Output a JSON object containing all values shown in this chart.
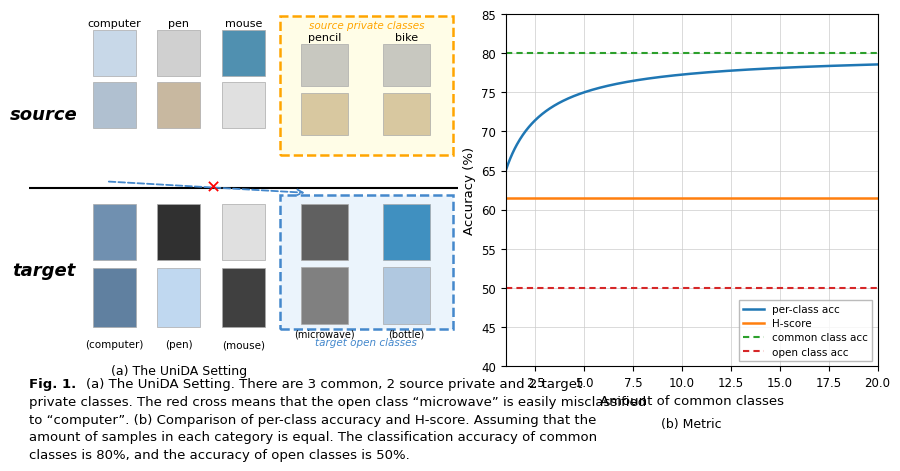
{
  "subplot_a_label": "(a) The UniDA Setting",
  "subplot_b_label": "(b) Metric",
  "fig_caption_bold": "Fig. 1.",
  "fig_caption_text": "(a) The UniDA Setting. There are 3 common, 2 source private and 2 target private classes. The red cross means that the open class “microwave” is easily misclassified to “computer”. (b) Comparison of per-class accuracy and H-score. Assuming that the amount of samples in each category is equal. The classification accuracy of common classes is 80%, and the accuracy of open classes is 50%.",
  "source_label": "source",
  "target_label": "target",
  "source_common_classes": [
    "computer",
    "pen",
    "mouse"
  ],
  "source_private_classes": [
    "pencil",
    "bike"
  ],
  "target_common_classes": [
    "(computer)",
    "(pen)",
    "(mouse)"
  ],
  "target_open_classes": [
    "(microwave)",
    "(bottle)"
  ],
  "source_private_box_label": "source private classes",
  "target_open_box_label": "target open classes",
  "plot_xlabel": "Amount of common classes",
  "plot_ylabel": "Accuracy (%)",
  "plot_xlim": [
    1,
    20
  ],
  "plot_ylim": [
    40,
    85
  ],
  "plot_yticks": [
    40,
    45,
    50,
    55,
    60,
    65,
    70,
    75,
    80,
    85
  ],
  "plot_xticks": [
    2.5,
    5.0,
    7.5,
    10.0,
    12.5,
    15.0,
    17.5,
    20.0
  ],
  "common_class_acc": 80,
  "open_class_acc": 50,
  "legend_labels": [
    "per-class acc",
    "H-score",
    "common class acc",
    "open class acc"
  ],
  "line_colors": [
    "#1f77b4",
    "#ff7f0e",
    "#2ca02c",
    "#d62728"
  ],
  "bg_color": "#ffffff",
  "grid_color": "#cccccc",
  "source_img_colors": [
    "#c8d8e8",
    "#d0d0d0",
    "#5090b0"
  ],
  "source_img_colors2": [
    "#b0c0d0",
    "#c8b8a0",
    "#e0e0e0"
  ],
  "target_img_colors": [
    "#7090b0",
    "#303030",
    "#e0e0e0"
  ],
  "target_img_colors2": [
    "#6080a0",
    "#c0d8f0",
    "#404040"
  ],
  "open_img_colors": [
    "#606060",
    "#4090c0"
  ],
  "open_img_colors2": [
    "#808080",
    "#b0c8e0"
  ]
}
